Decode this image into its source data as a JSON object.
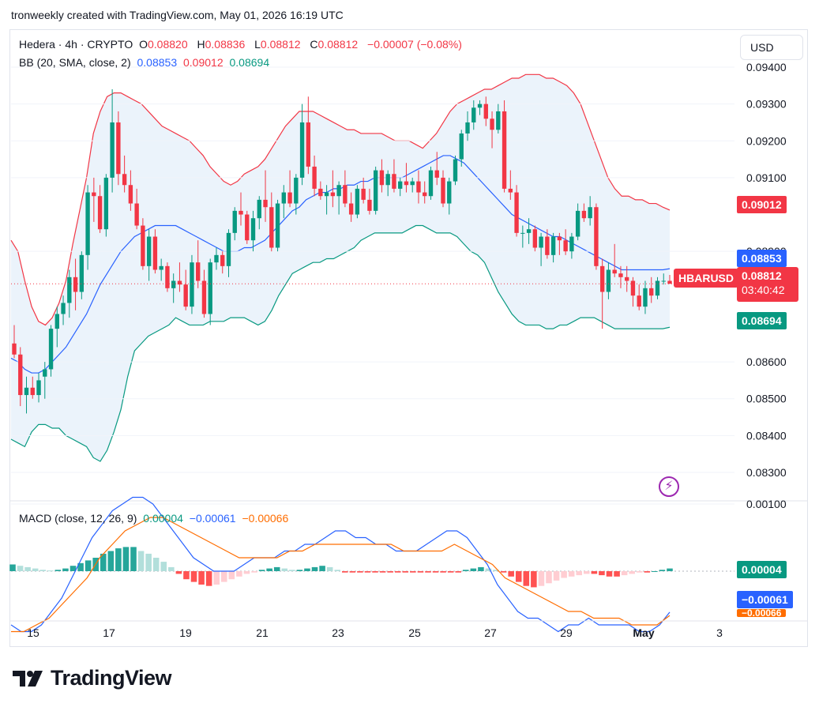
{
  "header": {
    "text": "tronweekly created with TradingView.com, May 01, 2026 16:19 UTC"
  },
  "legend": {
    "symbol": "Hedera · 4h · CRYPTO",
    "o_label": "O",
    "o_value": "0.08820",
    "h_label": "H",
    "h_value": "0.08836",
    "l_label": "L",
    "l_value": "0.08812",
    "c_label": "C",
    "c_value": "0.08812",
    "change": "−0.00007 (−0.08%)",
    "bb_name": "BB (20, SMA, close, 2)",
    "bb_basis": "0.08853",
    "bb_upper": "0.09012",
    "bb_lower": "0.08694",
    "macd_name": "MACD (close, 12, 26, 9)",
    "macd_hist": "0.00004",
    "macd_line": "−0.00061",
    "macd_signal": "−0.00066"
  },
  "currency_button": "USD",
  "price_tags": {
    "upper": "0.09012",
    "basis": "0.08853",
    "last": "0.08812",
    "countdown": "03:40:42",
    "lower": "0.08694",
    "symbol": "HBARUSD",
    "macd_hist": "0.00004",
    "macd_line": "−0.00061",
    "macd_signal": "−0.00066"
  },
  "footer": {
    "brand": "TradingView"
  },
  "colors": {
    "up": "#089981",
    "down": "#f23645",
    "basis": "#2962ff",
    "signal": "#ff6d00",
    "band_fill": "#e9f2fb"
  },
  "chart_data": {
    "type": "candlestick",
    "title": "Hedera · 4h · CRYPTO",
    "yticks": [
      "0.09400",
      "0.09300",
      "0.09200",
      "0.09100",
      "0.08900",
      "0.08600",
      "0.08500",
      "0.08400",
      "0.08300"
    ],
    "ytick_values": [
      0.094,
      0.093,
      0.092,
      0.091,
      0.089,
      0.086,
      0.085,
      0.084,
      0.083
    ],
    "ylim": [
      0.0825,
      0.0945
    ],
    "xticks": [
      "15",
      "17",
      "19",
      "21",
      "23",
      "25",
      "27",
      "29",
      "May",
      "3"
    ],
    "macd_yticks": [
      "0.00100"
    ],
    "candles": [
      [
        0.0865,
        0.087,
        0.0861,
        0.0862
      ],
      [
        0.0862,
        0.0864,
        0.0848,
        0.0851
      ],
      [
        0.0851,
        0.0856,
        0.0846,
        0.0853
      ],
      [
        0.0853,
        0.0856,
        0.085,
        0.0851
      ],
      [
        0.0851,
        0.0857,
        0.0849,
        0.0855
      ],
      [
        0.0856,
        0.086,
        0.085,
        0.0858
      ],
      [
        0.0858,
        0.087,
        0.0856,
        0.0869
      ],
      [
        0.0869,
        0.0875,
        0.0864,
        0.0873
      ],
      [
        0.0873,
        0.0878,
        0.087,
        0.0876
      ],
      [
        0.0876,
        0.0885,
        0.0872,
        0.0883
      ],
      [
        0.0883,
        0.0888,
        0.0874,
        0.0879
      ],
      [
        0.0879,
        0.089,
        0.0877,
        0.0889
      ],
      [
        0.0889,
        0.0908,
        0.0885,
        0.0906
      ],
      [
        0.0906,
        0.091,
        0.0898,
        0.0905
      ],
      [
        0.0905,
        0.0908,
        0.0895,
        0.0896
      ],
      [
        0.0896,
        0.0911,
        0.0894,
        0.091
      ],
      [
        0.091,
        0.0934,
        0.0906,
        0.0925
      ],
      [
        0.0925,
        0.0928,
        0.0908,
        0.0911
      ],
      [
        0.0911,
        0.0916,
        0.0906,
        0.0908
      ],
      [
        0.0908,
        0.0912,
        0.0901,
        0.0903
      ],
      [
        0.0903,
        0.0907,
        0.0896,
        0.0897
      ],
      [
        0.0897,
        0.0899,
        0.0885,
        0.0886
      ],
      [
        0.0886,
        0.0896,
        0.0882,
        0.0894
      ],
      [
        0.0894,
        0.0896,
        0.0884,
        0.0885
      ],
      [
        0.0885,
        0.0888,
        0.0882,
        0.0886
      ],
      [
        0.0886,
        0.0887,
        0.0879,
        0.088
      ],
      [
        0.088,
        0.0884,
        0.0876,
        0.0882
      ],
      [
        0.0882,
        0.0887,
        0.0879,
        0.0881
      ],
      [
        0.0881,
        0.0885,
        0.0874,
        0.0875
      ],
      [
        0.0875,
        0.0889,
        0.0873,
        0.0887
      ],
      [
        0.0887,
        0.0893,
        0.088,
        0.0882
      ],
      [
        0.0882,
        0.0885,
        0.0872,
        0.0873
      ],
      [
        0.0873,
        0.0888,
        0.087,
        0.0887
      ],
      [
        0.0887,
        0.0891,
        0.0885,
        0.0889
      ],
      [
        0.0889,
        0.089,
        0.0884,
        0.0886
      ],
      [
        0.0886,
        0.0896,
        0.0883,
        0.0895
      ],
      [
        0.0895,
        0.0902,
        0.0893,
        0.0901
      ],
      [
        0.0901,
        0.0906,
        0.0897,
        0.09
      ],
      [
        0.09,
        0.0901,
        0.0892,
        0.0893
      ],
      [
        0.0893,
        0.0901,
        0.089,
        0.0899
      ],
      [
        0.0899,
        0.0905,
        0.0896,
        0.0904
      ],
      [
        0.0904,
        0.0912,
        0.0898,
        0.0902
      ],
      [
        0.0902,
        0.0906,
        0.089,
        0.0891
      ],
      [
        0.0891,
        0.0904,
        0.089,
        0.0903
      ],
      [
        0.0903,
        0.0908,
        0.0899,
        0.0906
      ],
      [
        0.0906,
        0.0912,
        0.0902,
        0.0903
      ],
      [
        0.0903,
        0.0911,
        0.09,
        0.091
      ],
      [
        0.091,
        0.093,
        0.0908,
        0.0925
      ],
      [
        0.0925,
        0.0932,
        0.0911,
        0.0913
      ],
      [
        0.0913,
        0.0916,
        0.0905,
        0.0907
      ],
      [
        0.0907,
        0.0909,
        0.0904,
        0.0905
      ],
      [
        0.0905,
        0.0908,
        0.09,
        0.0906
      ],
      [
        0.0906,
        0.0912,
        0.0902,
        0.0905
      ],
      [
        0.0905,
        0.0909,
        0.09,
        0.0908
      ],
      [
        0.0908,
        0.0912,
        0.0902,
        0.0903
      ],
      [
        0.0903,
        0.0906,
        0.0898,
        0.09
      ],
      [
        0.09,
        0.0908,
        0.0899,
        0.0907
      ],
      [
        0.0907,
        0.091,
        0.0903,
        0.0904
      ],
      [
        0.0904,
        0.0907,
        0.09,
        0.0901
      ],
      [
        0.0901,
        0.0913,
        0.09,
        0.0912
      ],
      [
        0.0912,
        0.0915,
        0.0906,
        0.0908
      ],
      [
        0.0908,
        0.0912,
        0.0905,
        0.0911
      ],
      [
        0.0911,
        0.0915,
        0.0906,
        0.0907
      ],
      [
        0.0907,
        0.091,
        0.0905,
        0.0909
      ],
      [
        0.0909,
        0.0914,
        0.0906,
        0.0908
      ],
      [
        0.0908,
        0.091,
        0.0906,
        0.0909
      ],
      [
        0.0909,
        0.0912,
        0.0903,
        0.0906
      ],
      [
        0.0906,
        0.0909,
        0.0903,
        0.0905
      ],
      [
        0.0905,
        0.0913,
        0.0904,
        0.0912
      ],
      [
        0.0912,
        0.0917,
        0.0908,
        0.091
      ],
      [
        0.091,
        0.0912,
        0.0902,
        0.0903
      ],
      [
        0.0903,
        0.091,
        0.09,
        0.0909
      ],
      [
        0.0909,
        0.0916,
        0.0908,
        0.0915
      ],
      [
        0.0915,
        0.0923,
        0.0913,
        0.0922
      ],
      [
        0.0922,
        0.0928,
        0.092,
        0.0925
      ],
      [
        0.0925,
        0.0931,
        0.0923,
        0.0929
      ],
      [
        0.0929,
        0.0931,
        0.0927,
        0.093
      ],
      [
        0.093,
        0.0932,
        0.0924,
        0.0926
      ],
      [
        0.0926,
        0.0928,
        0.0918,
        0.0923
      ],
      [
        0.0923,
        0.093,
        0.0922,
        0.0928
      ],
      [
        0.0928,
        0.0931,
        0.0906,
        0.0907
      ],
      [
        0.0907,
        0.0912,
        0.0904,
        0.0906
      ],
      [
        0.0906,
        0.0908,
        0.0894,
        0.0895
      ],
      [
        0.0895,
        0.0897,
        0.0891,
        0.0895
      ],
      [
        0.0895,
        0.0899,
        0.0892,
        0.0896
      ],
      [
        0.0896,
        0.0897,
        0.089,
        0.0891
      ],
      [
        0.0891,
        0.0895,
        0.0886,
        0.0894
      ],
      [
        0.0894,
        0.0896,
        0.0888,
        0.0889
      ],
      [
        0.0889,
        0.0895,
        0.0887,
        0.0894
      ],
      [
        0.0894,
        0.0895,
        0.0889,
        0.0893
      ],
      [
        0.0893,
        0.0896,
        0.0889,
        0.089
      ],
      [
        0.089,
        0.0895,
        0.0888,
        0.0894
      ],
      [
        0.0894,
        0.0903,
        0.0893,
        0.0901
      ],
      [
        0.0901,
        0.0903,
        0.0898,
        0.0899
      ],
      [
        0.0899,
        0.0905,
        0.0897,
        0.0902
      ],
      [
        0.0902,
        0.0903,
        0.0885,
        0.0886
      ],
      [
        0.0886,
        0.0888,
        0.0869,
        0.0879
      ],
      [
        0.0879,
        0.0887,
        0.0877,
        0.0885
      ],
      [
        0.0885,
        0.0892,
        0.0883,
        0.0884
      ],
      [
        0.0884,
        0.0886,
        0.088,
        0.0883
      ],
      [
        0.0883,
        0.0886,
        0.0879,
        0.0882
      ],
      [
        0.0882,
        0.0883,
        0.0875,
        0.0878
      ],
      [
        0.0878,
        0.0881,
        0.0874,
        0.0875
      ],
      [
        0.0875,
        0.0882,
        0.0873,
        0.088
      ],
      [
        0.088,
        0.0883,
        0.0876,
        0.0878
      ],
      [
        0.0878,
        0.0883,
        0.0877,
        0.0882
      ],
      [
        0.0882,
        0.0884,
        0.0881,
        0.0882
      ],
      [
        0.0882,
        0.08836,
        0.08812,
        0.08812
      ]
    ],
    "bb_upper": [
      0.0893,
      0.089,
      0.0882,
      0.0875,
      0.0871,
      0.087,
      0.0872,
      0.0876,
      0.0882,
      0.0892,
      0.0901,
      0.091,
      0.0922,
      0.0928,
      0.0932,
      0.0933,
      0.0933,
      0.0932,
      0.0931,
      0.093,
      0.0928,
      0.0926,
      0.0924,
      0.0923,
      0.0922,
      0.0921,
      0.092,
      0.0918,
      0.0916,
      0.0913,
      0.0911,
      0.0909,
      0.0908,
      0.0909,
      0.0911,
      0.0912,
      0.0913,
      0.0915,
      0.0918,
      0.0921,
      0.0924,
      0.0926,
      0.0928,
      0.0928,
      0.0928,
      0.0927,
      0.0926,
      0.0925,
      0.0924,
      0.0923,
      0.0923,
      0.0922,
      0.0922,
      0.0922,
      0.0922,
      0.0921,
      0.092,
      0.092,
      0.092,
      0.0919,
      0.0918,
      0.092,
      0.0922,
      0.0925,
      0.0928,
      0.093,
      0.0931,
      0.0932,
      0.0933,
      0.0934,
      0.0934,
      0.0935,
      0.0936,
      0.0937,
      0.0937,
      0.0938,
      0.0938,
      0.0938,
      0.0937,
      0.0937,
      0.0936,
      0.0935,
      0.0933,
      0.093,
      0.0925,
      0.092,
      0.0915,
      0.091,
      0.0907,
      0.0905,
      0.0905,
      0.0904,
      0.0904,
      0.0903,
      0.0903,
      0.0902,
      0.09012
    ],
    "bb_basis": [
      0.0861,
      0.086,
      0.0858,
      0.0857,
      0.0857,
      0.0858,
      0.086,
      0.0862,
      0.0864,
      0.0867,
      0.087,
      0.0873,
      0.0877,
      0.0881,
      0.0884,
      0.0887,
      0.089,
      0.0892,
      0.0894,
      0.0895,
      0.0896,
      0.0897,
      0.0897,
      0.0897,
      0.0897,
      0.0896,
      0.0895,
      0.0894,
      0.0893,
      0.0892,
      0.0891,
      0.089,
      0.089,
      0.089,
      0.0891,
      0.0891,
      0.0892,
      0.0893,
      0.0895,
      0.0897,
      0.0899,
      0.0901,
      0.0902,
      0.0904,
      0.0905,
      0.0906,
      0.0906,
      0.0907,
      0.0907,
      0.0908,
      0.0908,
      0.0909,
      0.0909,
      0.091,
      0.091,
      0.091,
      0.091,
      0.091,
      0.0911,
      0.0912,
      0.0913,
      0.0914,
      0.0915,
      0.0916,
      0.0916,
      0.0915,
      0.0914,
      0.0912,
      0.091,
      0.0908,
      0.0906,
      0.0904,
      0.0902,
      0.09,
      0.0899,
      0.0898,
      0.0897,
      0.0896,
      0.0895,
      0.0894,
      0.0894,
      0.0893,
      0.0892,
      0.0891,
      0.089,
      0.0889,
      0.0888,
      0.0887,
      0.0886,
      0.0885,
      0.0885,
      0.0885,
      0.0885,
      0.0885,
      0.0885,
      0.0885,
      0.08853
    ],
    "bb_lower": [
      0.0839,
      0.0838,
      0.0837,
      0.0841,
      0.0843,
      0.0843,
      0.0842,
      0.0842,
      0.084,
      0.0839,
      0.0838,
      0.0837,
      0.0834,
      0.0833,
      0.0836,
      0.0841,
      0.0847,
      0.0856,
      0.0863,
      0.0865,
      0.0867,
      0.0868,
      0.0869,
      0.087,
      0.0872,
      0.0871,
      0.087,
      0.087,
      0.087,
      0.0871,
      0.0871,
      0.0871,
      0.0872,
      0.0872,
      0.0872,
      0.0871,
      0.087,
      0.0871,
      0.0874,
      0.0878,
      0.0881,
      0.0884,
      0.0885,
      0.0886,
      0.0887,
      0.0887,
      0.0888,
      0.0888,
      0.0889,
      0.089,
      0.0891,
      0.0893,
      0.0894,
      0.0895,
      0.0895,
      0.0895,
      0.0895,
      0.0895,
      0.0896,
      0.0897,
      0.0897,
      0.0896,
      0.0895,
      0.0895,
      0.0895,
      0.0894,
      0.0892,
      0.089,
      0.0889,
      0.0887,
      0.0883,
      0.0879,
      0.0876,
      0.0873,
      0.0871,
      0.087,
      0.087,
      0.087,
      0.0869,
      0.0869,
      0.087,
      0.087,
      0.0871,
      0.0872,
      0.0872,
      0.0872,
      0.0871,
      0.087,
      0.0869,
      0.0869,
      0.0869,
      0.0869,
      0.0869,
      0.0869,
      0.0869,
      0.0869,
      0.08694
    ],
    "macd_line": [
      -0.0008,
      -0.0009,
      -0.0009,
      -0.0008,
      -0.0006,
      -0.0004,
      -0.0001,
      0.0002,
      0.0005,
      0.0007,
      0.0009,
      0.001,
      0.0011,
      0.0011,
      0.001,
      0.0008,
      0.0006,
      0.0004,
      0.0002,
      0.0001,
      0.0,
      0.0,
      0.0,
      0.0001,
      0.0002,
      0.0002,
      0.0002,
      0.0003,
      0.0003,
      0.0004,
      0.0004,
      0.0005,
      0.0006,
      0.0006,
      0.0005,
      0.0005,
      0.0004,
      0.0004,
      0.0003,
      0.0003,
      0.0003,
      0.0004,
      0.0005,
      0.0006,
      0.0006,
      0.0005,
      0.0003,
      0.0001,
      -0.0002,
      -0.0004,
      -0.0006,
      -0.0007,
      -0.0007,
      -0.0008,
      -0.0009,
      -0.0008,
      -0.0008,
      -0.0007,
      -0.0008,
      -0.0008,
      -0.0008,
      -0.0008,
      -0.0009,
      -0.0009,
      -0.0008,
      -0.00061
    ],
    "macd_signal": [
      -0.0009,
      -0.0009,
      -0.0008,
      -0.0007,
      -0.0005,
      -0.0003,
      -0.0001,
      0.0002,
      0.0004,
      0.0006,
      0.0007,
      0.0008,
      0.0008,
      0.0007,
      0.0006,
      0.0005,
      0.0004,
      0.0003,
      0.0002,
      0.0002,
      0.0002,
      0.0002,
      0.0003,
      0.0003,
      0.0004,
      0.0004,
      0.0004,
      0.0004,
      0.0004,
      0.0004,
      0.0004,
      0.0003,
      0.0003,
      0.0003,
      0.0003,
      0.0004,
      0.0003,
      0.0002,
      0.0001,
      -0.0001,
      -0.0002,
      -0.0003,
      -0.0004,
      -0.0005,
      -0.0006,
      -0.0006,
      -0.0007,
      -0.0007,
      -0.0007,
      -0.0008,
      -0.0008,
      -0.0008,
      -0.00066
    ],
    "macd_hist": [
      0.0001,
      8e-05,
      6e-05,
      4e-05,
      2e-05,
      1e-05,
      2e-05,
      4e-05,
      8e-05,
      0.00012,
      0.00016,
      0.0002,
      0.00026,
      0.0003,
      0.00034,
      0.00036,
      0.00036,
      0.0003,
      0.00026,
      0.0002,
      0.00014,
      6e-05,
      -4e-05,
      -0.00012,
      -0.00016,
      -0.0002,
      -0.00022,
      -0.0002,
      -0.00016,
      -0.00012,
      -8e-05,
      -4e-05,
      -2e-05,
      2e-05,
      4e-05,
      6e-05,
      4e-05,
      2e-05,
      2e-05,
      4e-05,
      6e-05,
      8e-05,
      6e-05,
      2e-05,
      -2e-05,
      -2e-05,
      -2e-05,
      -2e-05,
      -2e-05,
      -2e-05,
      -2e-05,
      -2e-05,
      -2e-05,
      -2e-05,
      -2e-05,
      -2e-05,
      -2e-05,
      -2e-05,
      -2e-05,
      -2e-05,
      2e-05,
      4e-05,
      6e-05,
      4e-05,
      2e-05,
      -2e-05,
      -8e-05,
      -0.00016,
      -0.00022,
      -0.00024,
      -0.00022,
      -0.00018,
      -0.00014,
      -0.0001,
      -8e-05,
      -6e-05,
      -4e-05,
      -4e-05,
      -6e-05,
      -8e-05,
      -8e-05,
      -6e-05,
      -4e-05,
      -2e-05,
      -2e-05,
      0.0,
      2e-05,
      4e-05
    ]
  }
}
